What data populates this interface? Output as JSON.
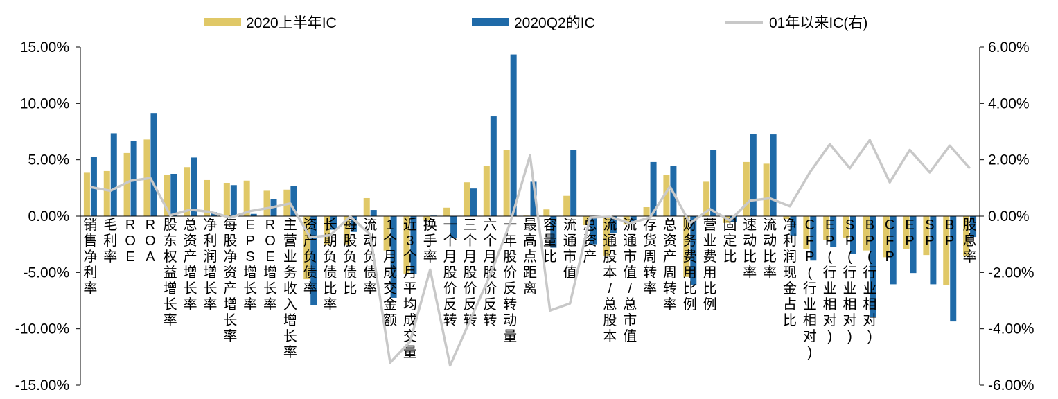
{
  "colors": {
    "h1": "#E0C867",
    "q2": "#1F6AA8",
    "since01": "#C8C8C8",
    "axis": "#000000"
  },
  "chart_data": {
    "type": "bar",
    "legend": {
      "position": "top",
      "items": [
        {
          "key": "h1",
          "label": "2020上半年IC",
          "kind": "bar"
        },
        {
          "key": "q2",
          "label": "2020Q2的IC",
          "kind": "bar"
        },
        {
          "key": "since01",
          "label": "01年以来IC(右)",
          "kind": "line"
        }
      ]
    },
    "y_left": {
      "min": -0.15,
      "max": 0.15,
      "ticks": [
        {
          "v": 0.15,
          "label": "15.00%"
        },
        {
          "v": 0.1,
          "label": "10.00%"
        },
        {
          "v": 0.05,
          "label": "5.00%"
        },
        {
          "v": 0.0,
          "label": "0.00%"
        },
        {
          "v": -0.05,
          "label": "-5.00%"
        },
        {
          "v": -0.1,
          "label": "-10.00%"
        },
        {
          "v": -0.15,
          "label": "-15.00%"
        }
      ]
    },
    "y_right": {
      "min": -0.06,
      "max": 0.06,
      "ticks": [
        {
          "v": 0.06,
          "label": "6.00%"
        },
        {
          "v": 0.04,
          "label": "4.00%"
        },
        {
          "v": 0.02,
          "label": "2.00%"
        },
        {
          "v": 0.0,
          "label": "0.00%"
        },
        {
          "v": -0.02,
          "label": "-2.00%"
        },
        {
          "v": -0.04,
          "label": "-4.00%"
        },
        {
          "v": -0.06,
          "label": "-6.00%"
        }
      ]
    },
    "grid": false,
    "categories": [
      "销售净利率",
      "毛利率",
      "ROE",
      "ROA",
      "股东权益增长率",
      "总资产增长率",
      "净利润增长率",
      "每股净资产增长率",
      "EPS增长率",
      "ROE增长率",
      "主营业务收入增长率",
      "资产负债率",
      "长期负债比率",
      "每股负债比",
      "流动负债率",
      "1个月成交金额",
      "近3个月平均成交量",
      "换手率",
      "一个月股价反转",
      "三个月股价反转",
      "六个月股价反转",
      "一年股价反转动量",
      "最高点距离",
      "容量比",
      "流通市值",
      "总资产",
      "流通股本/总股本",
      "流通市值/总市值",
      "存货周转率",
      "总资产周转率",
      "财务费用比例",
      "营业费用比例",
      "固定比",
      "速动比率",
      "流动比率",
      "净利润现金占比",
      "CFP(行业相对)",
      "EP(行业相对)",
      "SP(行业相对)",
      "BP(行业相对)",
      "CFP",
      "EP",
      "SP",
      "BP",
      "股息率"
    ],
    "series": [
      {
        "key": "h1",
        "name": "2020上半年IC",
        "axis": "left",
        "values": [
          0.0385,
          0.04,
          0.056,
          0.068,
          0.0365,
          0.0435,
          0.032,
          0.0295,
          0.0315,
          0.0225,
          0.0235,
          -0.056,
          -0.025,
          -0.025,
          0.016,
          -0.0305,
          -0.051,
          -0.0035,
          0.0075,
          0.03,
          0.0445,
          0.059,
          0.0005,
          0.006,
          0.018,
          -0.008,
          -0.035,
          -0.0075,
          0.008,
          0.0365,
          -0.054,
          0.0305,
          -0.006,
          0.048,
          0.0465,
          -0.0025,
          -0.0295,
          -0.0215,
          -0.019,
          -0.0305,
          -0.0365,
          -0.029,
          -0.0345,
          -0.061,
          -0.035
        ]
      },
      {
        "key": "q2",
        "name": "2020Q2的IC",
        "axis": "left",
        "values": [
          0.0525,
          0.0735,
          0.067,
          0.0915,
          0.0375,
          0.052,
          0.0035,
          0.0275,
          0.002,
          0.015,
          0.027,
          -0.079,
          -0.012,
          -0.014,
          0.0055,
          -0.0725,
          -0.0515,
          0.0005,
          -0.0195,
          0.0245,
          0.0885,
          0.1435,
          0.0305,
          -0.028,
          0.059,
          -0.025,
          -0.015,
          -0.0045,
          0.048,
          0.0445,
          -0.061,
          0.059,
          -0.005,
          0.073,
          0.0725,
          -0.0175,
          -0.0395,
          -0.0275,
          -0.0335,
          -0.0895,
          -0.0605,
          -0.0505,
          -0.0605,
          -0.0935,
          -0.0185
        ]
      },
      {
        "key": "since01",
        "name": "01年以来IC(右)",
        "axis": "right",
        "type": "line",
        "values": [
          0.0103,
          0.009,
          0.0125,
          0.0135,
          0.0003,
          0.0023,
          0.0015,
          -0.0005,
          0.0018,
          0.003,
          0.0045,
          -0.0075,
          -0.0068,
          -0.0001,
          -0.0065,
          -0.052,
          -0.0445,
          -0.019,
          -0.053,
          -0.037,
          -0.021,
          -0.0025,
          0.0215,
          -0.0335,
          -0.031,
          -0.0005,
          -0.0002,
          -0.0025,
          -0.0005,
          0.0105,
          -0.0025,
          0.0025,
          -0.0015,
          0.0055,
          0.0063,
          0.0035,
          0.0155,
          0.0255,
          0.017,
          0.027,
          0.012,
          0.0235,
          0.0155,
          0.025,
          0.017
        ]
      }
    ]
  }
}
